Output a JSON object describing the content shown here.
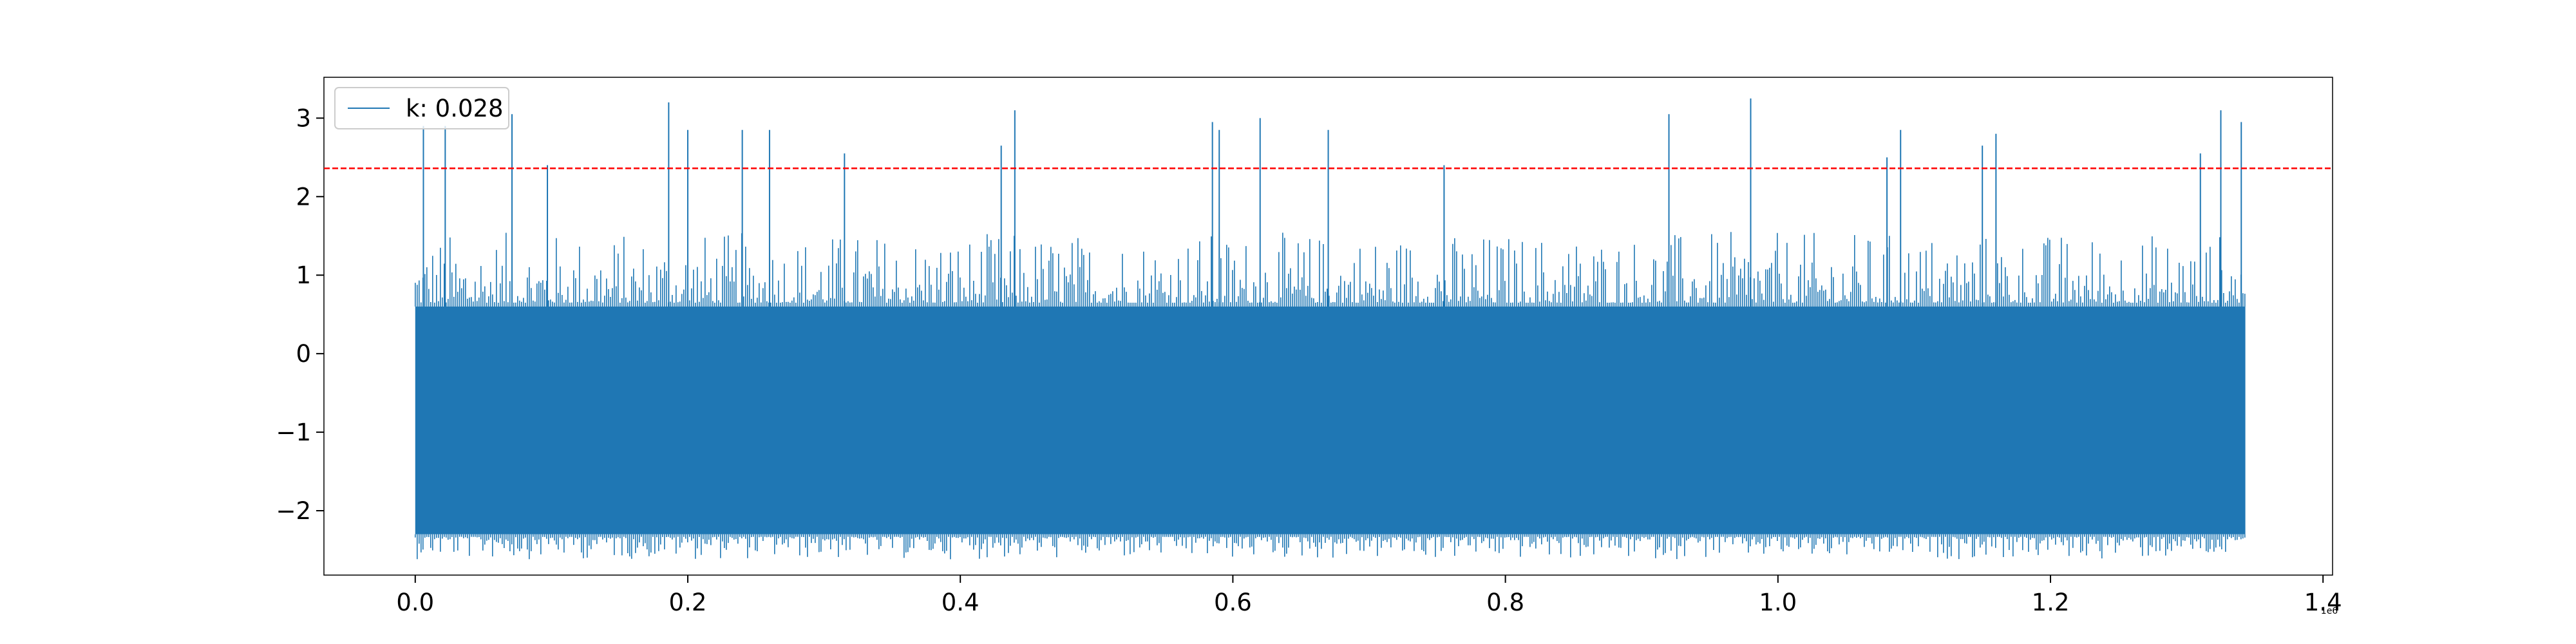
{
  "chart_data": {
    "type": "line",
    "x_offset_label": "1e6",
    "xlim": [
      -0.067,
      1.407
    ],
    "ylim": [
      -2.82,
      3.52
    ],
    "x_ticks": [
      {
        "value": 0.0,
        "label": "0.0"
      },
      {
        "value": 0.2,
        "label": "0.2"
      },
      {
        "value": 0.4,
        "label": "0.4"
      },
      {
        "value": 0.6,
        "label": "0.6"
      },
      {
        "value": 0.8,
        "label": "0.8"
      },
      {
        "value": 1.0,
        "label": "1.0"
      },
      {
        "value": 1.2,
        "label": "1.2"
      },
      {
        "value": 1.4,
        "label": "1.4"
      }
    ],
    "y_ticks": [
      {
        "value": 3,
        "label": "3"
      },
      {
        "value": 2,
        "label": "2"
      },
      {
        "value": 1,
        "label": "1"
      },
      {
        "value": 0,
        "label": "0"
      },
      {
        "value": -1,
        "label": "−1"
      },
      {
        "value": -2,
        "label": "−2"
      }
    ],
    "series": [
      {
        "name": "k: 0.028",
        "color": "#1f77b4",
        "x_range": [
          0.0,
          1.343
        ],
        "band_low": -2.3,
        "band_high": 0.6,
        "spikes": [
          {
            "x": 0.006,
            "y": 2.9
          },
          {
            "x": 0.022,
            "y": 2.9
          },
          {
            "x": 0.071,
            "y": 3.05
          },
          {
            "x": 0.097,
            "y": 2.4
          },
          {
            "x": 0.186,
            "y": 3.2
          },
          {
            "x": 0.2,
            "y": 2.85
          },
          {
            "x": 0.24,
            "y": 2.85
          },
          {
            "x": 0.26,
            "y": 2.85
          },
          {
            "x": 0.315,
            "y": 2.55
          },
          {
            "x": 0.43,
            "y": 2.65
          },
          {
            "x": 0.44,
            "y": 3.1
          },
          {
            "x": 0.585,
            "y": 2.95
          },
          {
            "x": 0.59,
            "y": 2.85
          },
          {
            "x": 0.62,
            "y": 3.0
          },
          {
            "x": 0.67,
            "y": 2.85
          },
          {
            "x": 0.755,
            "y": 2.4
          },
          {
            "x": 0.92,
            "y": 3.05
          },
          {
            "x": 0.98,
            "y": 3.25
          },
          {
            "x": 1.08,
            "y": 2.5
          },
          {
            "x": 1.09,
            "y": 2.85
          },
          {
            "x": 1.15,
            "y": 2.65
          },
          {
            "x": 1.16,
            "y": 2.8
          },
          {
            "x": 1.31,
            "y": 2.55
          },
          {
            "x": 1.325,
            "y": 3.1
          },
          {
            "x": 1.34,
            "y": 2.95
          }
        ]
      }
    ],
    "threshold": {
      "y": 2.36,
      "color": "#ff0000",
      "style": "dashed"
    },
    "legend": {
      "placement": "upper-left"
    },
    "grid": false,
    "title": "",
    "xlabel": "",
    "ylabel": ""
  }
}
